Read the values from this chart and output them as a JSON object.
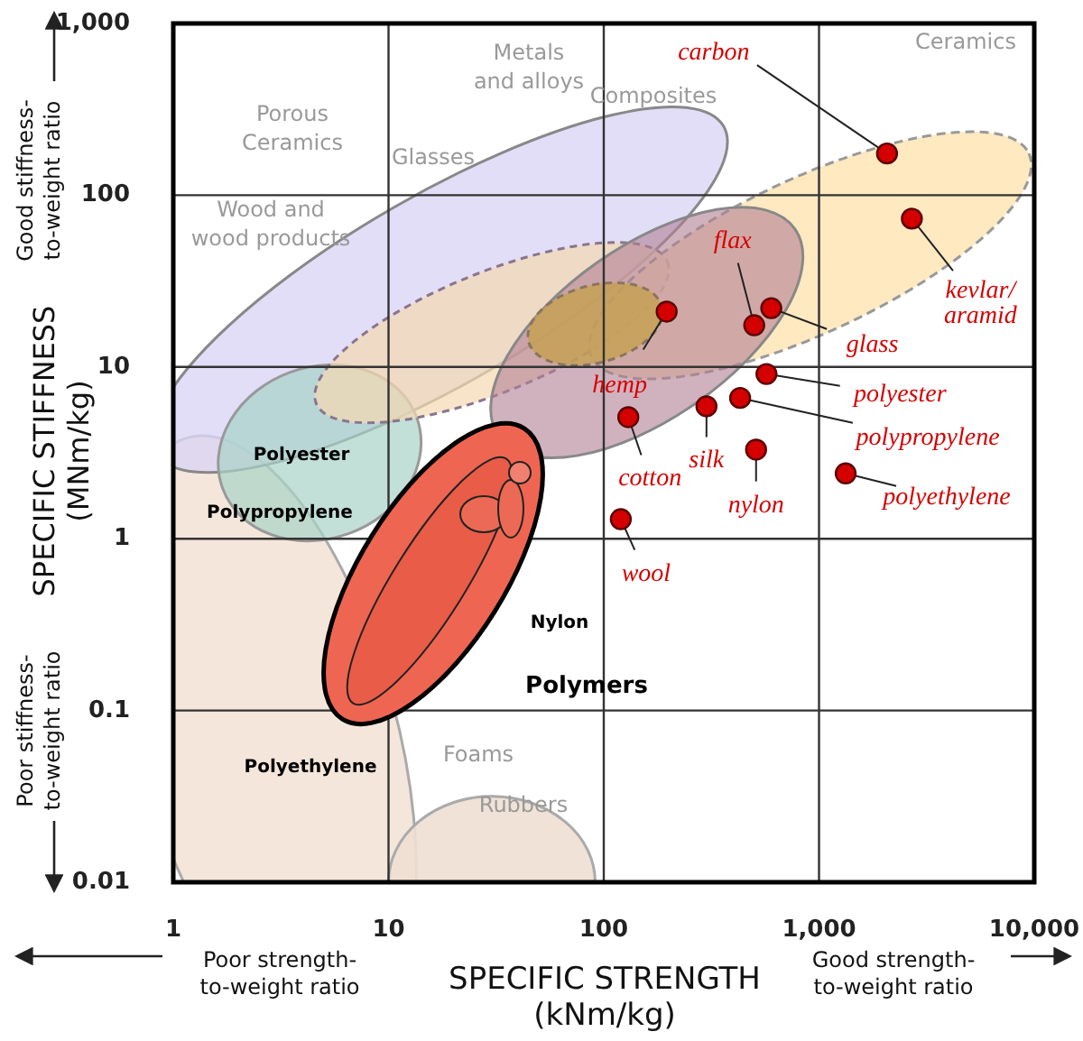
{
  "chart_data": {
    "type": "scatter",
    "xlabel": "SPECIFIC STRENGTH (kNm/kg)",
    "ylabel": "SPECIFIC STIFFNESS (MNm/kg)",
    "log": "xy",
    "grid": true,
    "marker": "circle",
    "xlim": [
      1,
      10000
    ],
    "xticks": [
      1,
      10,
      100,
      {
        "value": 1000,
        "label": "1,000"
      },
      {
        "value": 10000,
        "label": "10,000"
      }
    ],
    "ylim": [
      0.01,
      1000
    ],
    "yticks": [
      0.01,
      0.1,
      1,
      10,
      100,
      {
        "value": 1000,
        "label": "1,000"
      }
    ],
    "series": [
      {
        "name": "carbon",
        "color": "#d40000",
        "x": [
          2070
        ],
        "values": [
          175
        ]
      },
      {
        "name": "kevlar/aramid",
        "color": "#d40000",
        "x": [
          2700
        ],
        "values": [
          73
        ]
      },
      {
        "name": "glass",
        "color": "#d40000",
        "x": [
          600
        ],
        "values": [
          22
        ]
      },
      {
        "name": "flax",
        "color": "#d40000",
        "x": [
          500
        ],
        "values": [
          17.5
        ]
      },
      {
        "name": "hemp",
        "color": "#d40000",
        "x": [
          196
        ],
        "values": [
          21
        ]
      },
      {
        "name": "polyester",
        "color": "#d40000",
        "x": [
          570
        ],
        "values": [
          9.1
        ]
      },
      {
        "name": "polypropylene",
        "color": "#d40000",
        "x": [
          430
        ],
        "values": [
          6.6
        ]
      },
      {
        "name": "silk",
        "color": "#d40000",
        "x": [
          300
        ],
        "values": [
          5.9
        ]
      },
      {
        "name": "cotton",
        "color": "#d40000",
        "x": [
          130
        ],
        "values": [
          5.1
        ]
      },
      {
        "name": "nylon",
        "color": "#d40000",
        "x": [
          510
        ],
        "values": [
          3.3
        ]
      },
      {
        "name": "polyethylene",
        "color": "#d40000",
        "x": [
          1330
        ],
        "values": [
          2.4
        ]
      },
      {
        "name": "wool",
        "color": "#d40000",
        "x": [
          120
        ],
        "values": [
          1.3
        ]
      }
    ],
    "annotations": [
      "Metals and alloys",
      "Porous Ceramics",
      "Glasses",
      "Wood and wood products",
      "Composites",
      "Ceramics",
      "Foams",
      "Rubbers",
      "Polyester",
      "Polypropylene",
      "Nylon",
      "Polyethylene",
      "Polymers",
      "Good stiffness-to-weight ratio",
      "Poor stiffness-to-weight ratio",
      "Poor strength-to-weight ratio",
      "Good strength-to-weight ratio"
    ]
  }
}
